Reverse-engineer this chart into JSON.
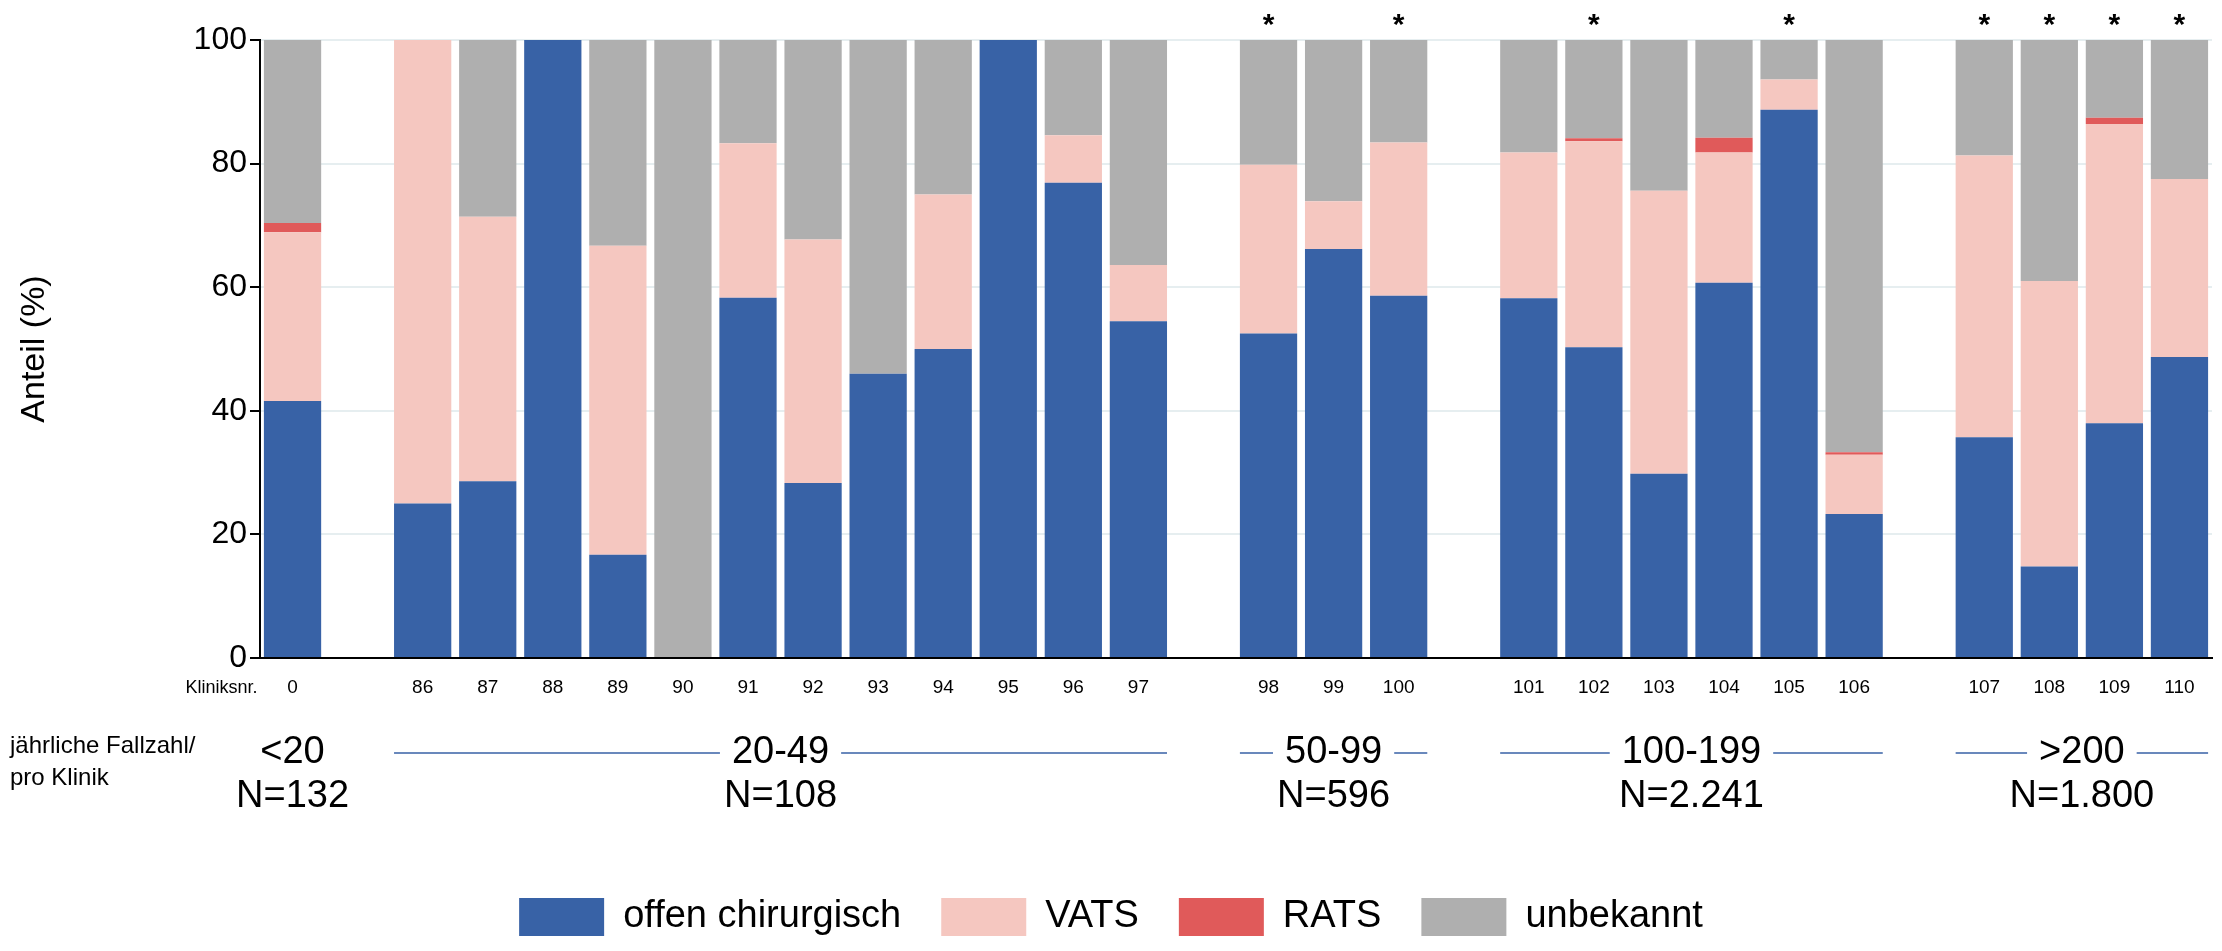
{
  "chart_data": {
    "type": "bar",
    "stacked": true,
    "ylabel": "Anteil (%)",
    "categories": [
      "0",
      null,
      "86",
      "87",
      "88",
      "89",
      "90",
      "91",
      "92",
      "93",
      "94",
      "95",
      "96",
      "97",
      null,
      "98",
      "99",
      "100",
      null,
      "101",
      "102",
      "103",
      "104",
      "105",
      "106",
      null,
      "107",
      "108",
      "109",
      "110"
    ],
    "series": [
      {
        "name": "offen chirurgisch",
        "color": "#3862a6",
        "values": [
          41.6,
          null,
          25,
          28.6,
          100,
          16.7,
          0,
          58.3,
          28.3,
          46,
          50,
          100,
          76.9,
          54.5,
          null,
          52.5,
          66.2,
          58.6,
          null,
          58.2,
          50.3,
          29.8,
          60.7,
          88.7,
          23.3,
          null,
          35.7,
          14.8,
          38.0,
          48.7
        ]
      },
      {
        "name": "VATS",
        "color": "#f5c7c0",
        "values": [
          27.3,
          null,
          75,
          42.8,
          0,
          50,
          0,
          25,
          39.4,
          0,
          25,
          0,
          7.7,
          9.1,
          null,
          27.3,
          7.7,
          24.8,
          null,
          23.6,
          33.3,
          45.8,
          21.1,
          4.9,
          9.6,
          null,
          45.6,
          46.2,
          48.4,
          28.8
        ]
      },
      {
        "name": "RATS",
        "color": "#e05a5a",
        "values": [
          1.5,
          null,
          0,
          0,
          0,
          0,
          0,
          0,
          0,
          0,
          0,
          0,
          0,
          0,
          null,
          0,
          0,
          0,
          null,
          0,
          0.5,
          0,
          2.4,
          0,
          0.4,
          null,
          0,
          0,
          1.0,
          0
        ]
      },
      {
        "name": "unbekannt",
        "color": "#afafaf",
        "values": [
          29.6,
          null,
          0,
          28.6,
          0,
          33.3,
          100,
          16.7,
          32.3,
          54,
          25,
          0,
          15.4,
          36.4,
          null,
          20.2,
          26.1,
          16.6,
          null,
          18.2,
          15.9,
          24.4,
          15.8,
          6.4,
          66.7,
          null,
          18.7,
          39.0,
          12.6,
          22.5
        ]
      }
    ],
    "ylim": [
      0,
      100
    ],
    "yticks": [
      0,
      20,
      40,
      60,
      80,
      100
    ],
    "grid": "y",
    "legend": "bottom",
    "annotations": [
      "Kliniksnr.",
      "jährliche Fallzahl/\npro Klinik",
      "<20\nN=132",
      "20-49\nN=108",
      "50-99\nN=596",
      "100-199\nN=2.241",
      ">200\nN=1.800",
      {
        "text": "*",
        "x": "98",
        "y": 100
      },
      {
        "text": "*",
        "x": "100",
        "y": 100
      },
      {
        "text": "*",
        "x": "102",
        "y": 100
      },
      {
        "text": "*",
        "x": "105",
        "y": 100
      },
      {
        "text": "*",
        "x": "107",
        "y": 100
      },
      {
        "text": "*",
        "x": "108",
        "y": 100
      },
      {
        "text": "*",
        "x": "109",
        "y": 100
      },
      {
        "text": "*",
        "x": "110",
        "y": 100
      }
    ]
  }
}
